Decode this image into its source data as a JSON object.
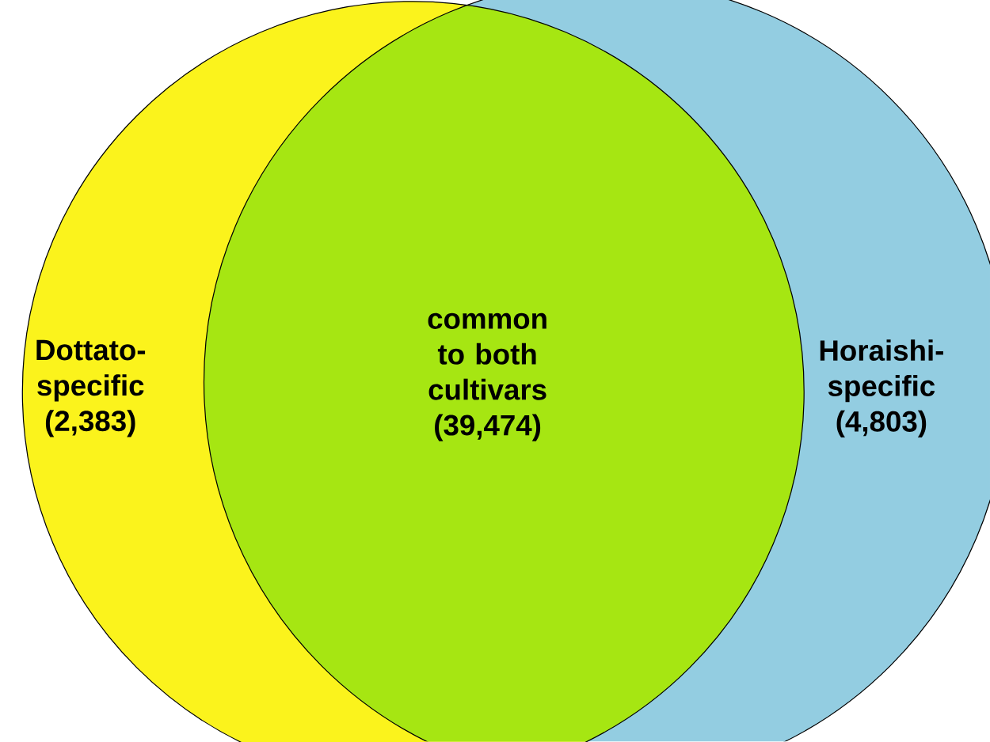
{
  "chart_data": {
    "type": "other",
    "categories": [
      "Dottato-specific",
      "common to both cultivars",
      "Horaishi-specific"
    ],
    "colors": [
      "#fbf31c",
      "#a6e612",
      "#93cde1"
    ],
    "values": [
      2383,
      39474,
      4803
    ],
    "value_labels": [
      "(2,383)",
      "(39,474)",
      "(4,803)"
    ]
  }
}
